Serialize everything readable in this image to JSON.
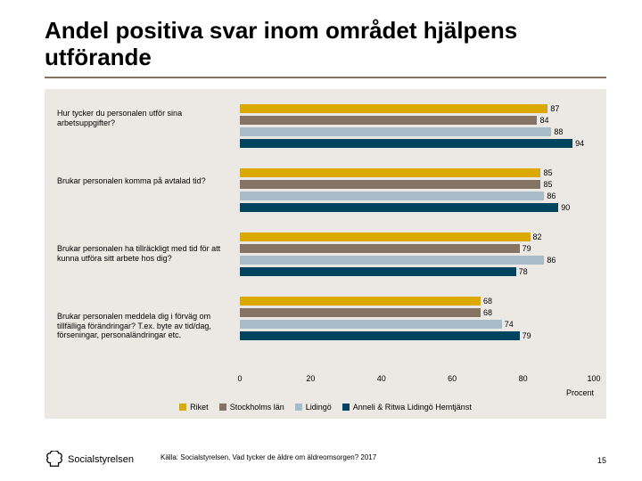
{
  "title": "Andel positiva svar inom området hjälpens utförande",
  "chart": {
    "type": "bar-horizontal-grouped",
    "background_color": "#ece9e4",
    "xlim": [
      0,
      100
    ],
    "xticks": [
      0,
      20,
      40,
      60,
      80,
      100
    ],
    "xaxis_label": "Procent",
    "series": [
      {
        "name": "Riket",
        "color": "#dba900"
      },
      {
        "name": "Stockholms län",
        "color": "#857363"
      },
      {
        "name": "Lidingö",
        "color": "#a6bcc9"
      },
      {
        "name": "Anneli & Ritwa Lidingö Hemtjänst",
        "color": "#004461"
      }
    ],
    "groups": [
      {
        "label": "Hur tycker du personalen utför sina arbetsuppgifter?",
        "values": [
          87,
          84,
          88,
          94
        ]
      },
      {
        "label": "Brukar personalen komma på avtalad tid?",
        "values": [
          85,
          85,
          86,
          90
        ]
      },
      {
        "label": "Brukar personalen ha tillräckligt med tid för att kunna utföra sitt arbete hos dig?",
        "values": [
          82,
          79,
          86,
          78
        ]
      },
      {
        "label": "Brukar personalen meddela dig i förväg om tillfälliga förändringar? T.ex. byte av tid/dag, förseningar, personaländringar etc.",
        "values": [
          68,
          68,
          74,
          79
        ]
      }
    ]
  },
  "source": "Källa: Socialstyrelsen, Vad tycker de äldre om äldreomsorgen? 2017",
  "page": "15",
  "logo_text": "Socialstyrelsen"
}
